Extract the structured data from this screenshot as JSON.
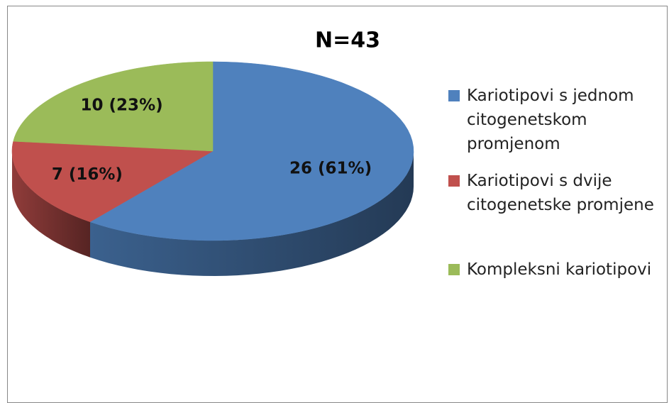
{
  "chart_data": {
    "type": "pie",
    "title": "N=43",
    "categories": [
      "Kariotipovi s jednom citogenetskom promjenom",
      "Kariotipovi s dvije citogenetske promjene",
      "Kompleksni kariotipovi"
    ],
    "values": [
      26,
      7,
      10
    ],
    "value_labels": [
      "26 (61%)",
      "7 (16%)",
      "10 (23%)"
    ],
    "colors": [
      "#4f81bd",
      "#c0504d",
      "#9bbb59"
    ],
    "legend": "right"
  }
}
